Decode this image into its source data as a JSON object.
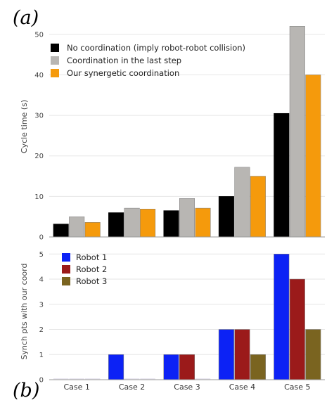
{
  "chart_data": [
    {
      "type": "bar",
      "panel_label": "(a)",
      "categories": [
        "Case 1",
        "Case 2",
        "Case 3",
        "Case 4",
        "Case 5"
      ],
      "ylabel": "Cycle time (s)",
      "ylim": [
        0,
        55
      ],
      "yticks": [
        0,
        10,
        20,
        30,
        40,
        50
      ],
      "grid": true,
      "legend_position": "top-left",
      "series": [
        {
          "name": "No coordination (imply robot-robot collision)",
          "color": "#000000",
          "values": [
            3.2,
            6.0,
            6.5,
            10.0,
            30.5
          ]
        },
        {
          "name": "Coordination in the last step",
          "color": "#b8b6b3",
          "values": [
            5.0,
            7.1,
            9.5,
            17.2,
            52.0
          ]
        },
        {
          "name": "Our synergetic coordination",
          "color": "#f59a0c",
          "values": [
            3.6,
            6.9,
            7.1,
            15.0,
            40.0
          ]
        }
      ]
    },
    {
      "type": "bar",
      "panel_label": "(b)",
      "categories": [
        "Case 1",
        "Case 2",
        "Case 3",
        "Case 4",
        "Case 5"
      ],
      "ylabel": "Synch pts with our coord",
      "ylim": [
        0,
        5.4
      ],
      "yticks": [
        0,
        1,
        2,
        3,
        4,
        5
      ],
      "grid": true,
      "legend_position": "top-left",
      "series": [
        {
          "name": "Robot 1",
          "color": "#0c22f5",
          "values": [
            0,
            1,
            1,
            2,
            5
          ]
        },
        {
          "name": "Robot 2",
          "color": "#9b1a1a",
          "values": [
            0,
            0,
            1,
            2,
            4
          ]
        },
        {
          "name": "Robot 3",
          "color": "#7a6420",
          "values": [
            0,
            0,
            0,
            1,
            2
          ]
        }
      ]
    }
  ]
}
